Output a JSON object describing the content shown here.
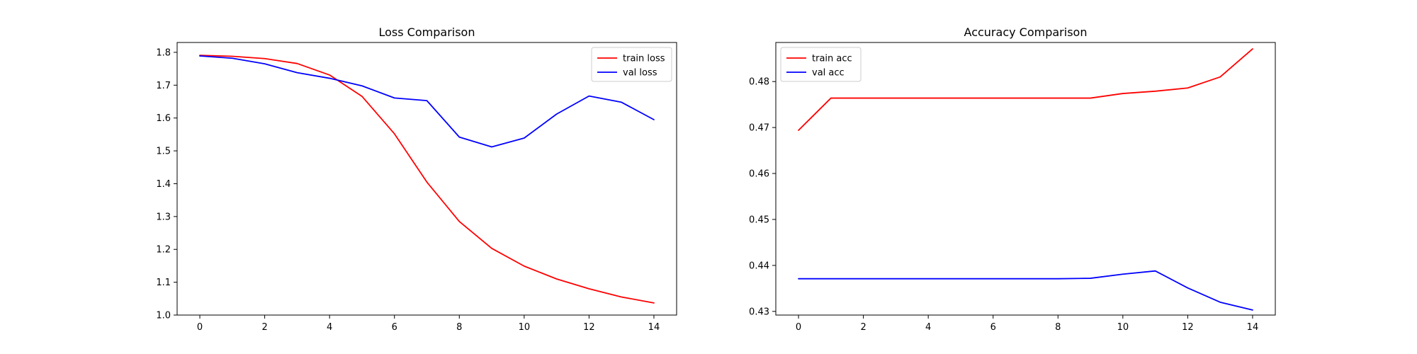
{
  "chart_data": [
    {
      "type": "line",
      "title": "Loss Comparison",
      "xlabel": "",
      "ylabel": "",
      "xlim": [
        -0.7,
        14.7
      ],
      "ylim": [
        1.0,
        1.83
      ],
      "xticks": [
        0,
        2,
        4,
        6,
        8,
        10,
        12,
        14
      ],
      "yticks": [
        1.0,
        1.1,
        1.2,
        1.3,
        1.4,
        1.5,
        1.6,
        1.7,
        1.8
      ],
      "ytick_decimals": 1,
      "legend": "upper-right",
      "grid": false,
      "x": [
        0,
        1,
        2,
        3,
        4,
        5,
        6,
        7,
        8,
        9,
        10,
        11,
        12,
        13,
        14
      ],
      "series": [
        {
          "name": "train loss",
          "color": "#ff0000",
          "values": [
            1.791,
            1.788,
            1.781,
            1.766,
            1.731,
            1.666,
            1.552,
            1.405,
            1.285,
            1.203,
            1.149,
            1.11,
            1.08,
            1.055,
            1.037
          ]
        },
        {
          "name": "val loss",
          "color": "#0000ff",
          "values": [
            1.789,
            1.782,
            1.765,
            1.738,
            1.721,
            1.698,
            1.661,
            1.653,
            1.542,
            1.512,
            1.539,
            1.612,
            1.667,
            1.648,
            1.595
          ]
        }
      ]
    },
    {
      "type": "line",
      "title": "Accuracy Comparison",
      "xlabel": "",
      "ylabel": "",
      "xlim": [
        -0.7,
        14.7
      ],
      "ylim": [
        0.4292,
        0.4885
      ],
      "xticks": [
        0,
        2,
        4,
        6,
        8,
        10,
        12,
        14
      ],
      "yticks": [
        0.43,
        0.44,
        0.45,
        0.46,
        0.47,
        0.48
      ],
      "ytick_decimals": 2,
      "legend": "upper-left",
      "grid": false,
      "x": [
        0,
        1,
        2,
        3,
        4,
        5,
        6,
        7,
        8,
        9,
        10,
        11,
        12,
        13,
        14
      ],
      "series": [
        {
          "name": "train acc",
          "color": "#ff0000",
          "values": [
            0.4694,
            0.4764,
            0.4764,
            0.4764,
            0.4764,
            0.4764,
            0.4764,
            0.4764,
            0.4764,
            0.4764,
            0.4774,
            0.4779,
            0.4786,
            0.481,
            0.4871
          ]
        },
        {
          "name": "val acc",
          "color": "#0000ff",
          "values": [
            0.4371,
            0.4371,
            0.4371,
            0.4371,
            0.4371,
            0.4371,
            0.4371,
            0.4371,
            0.4371,
            0.4372,
            0.4381,
            0.4388,
            0.4351,
            0.432,
            0.4303
          ]
        }
      ]
    }
  ]
}
